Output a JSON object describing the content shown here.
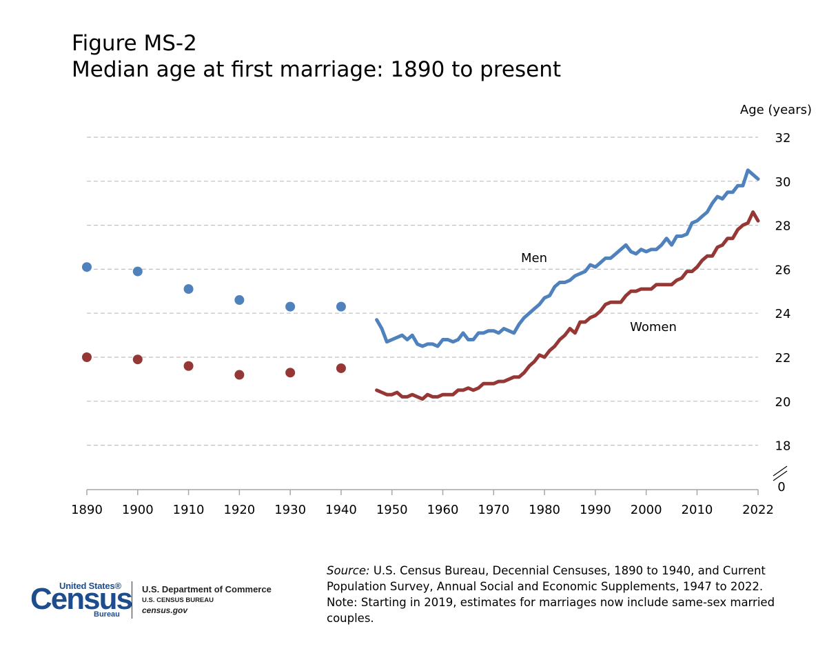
{
  "title": {
    "line1": "Figure MS-2",
    "line2": "Median age at first marriage: 1890 to present"
  },
  "chart_data": {
    "type": "line",
    "ylabel": "Age (years)",
    "ylim": [
      18,
      32
    ],
    "y_ticks": [
      32,
      30,
      28,
      26,
      24,
      22,
      20,
      18
    ],
    "y_zero_label": "0",
    "y_axis_break": true,
    "x_ticks": [
      1890,
      1900,
      1910,
      1920,
      1930,
      1940,
      1950,
      1960,
      1970,
      1980,
      1990,
      2000,
      2010,
      2022
    ],
    "grid": "horizontal dashed",
    "series": [
      {
        "name": "Men",
        "color": "#4f81bd",
        "census_points": [
          [
            1890,
            26.1
          ],
          [
            1900,
            25.9
          ],
          [
            1910,
            25.1
          ],
          [
            1920,
            24.6
          ],
          [
            1930,
            24.3
          ],
          [
            1940,
            24.3
          ]
        ],
        "line": [
          [
            1947,
            23.7
          ],
          [
            1948,
            23.3
          ],
          [
            1949,
            22.7
          ],
          [
            1950,
            22.8
          ],
          [
            1951,
            22.9
          ],
          [
            1952,
            23.0
          ],
          [
            1953,
            22.8
          ],
          [
            1954,
            23.0
          ],
          [
            1955,
            22.6
          ],
          [
            1956,
            22.5
          ],
          [
            1957,
            22.6
          ],
          [
            1958,
            22.6
          ],
          [
            1959,
            22.5
          ],
          [
            1960,
            22.8
          ],
          [
            1961,
            22.8
          ],
          [
            1962,
            22.7
          ],
          [
            1963,
            22.8
          ],
          [
            1964,
            23.1
          ],
          [
            1965,
            22.8
          ],
          [
            1966,
            22.8
          ],
          [
            1967,
            23.1
          ],
          [
            1968,
            23.1
          ],
          [
            1969,
            23.2
          ],
          [
            1970,
            23.2
          ],
          [
            1971,
            23.1
          ],
          [
            1972,
            23.3
          ],
          [
            1973,
            23.2
          ],
          [
            1974,
            23.1
          ],
          [
            1975,
            23.5
          ],
          [
            1976,
            23.8
          ],
          [
            1977,
            24.0
          ],
          [
            1978,
            24.2
          ],
          [
            1979,
            24.4
          ],
          [
            1980,
            24.7
          ],
          [
            1981,
            24.8
          ],
          [
            1982,
            25.2
          ],
          [
            1983,
            25.4
          ],
          [
            1984,
            25.4
          ],
          [
            1985,
            25.5
          ],
          [
            1986,
            25.7
          ],
          [
            1987,
            25.8
          ],
          [
            1988,
            25.9
          ],
          [
            1989,
            26.2
          ],
          [
            1990,
            26.1
          ],
          [
            1991,
            26.3
          ],
          [
            1992,
            26.5
          ],
          [
            1993,
            26.5
          ],
          [
            1994,
            26.7
          ],
          [
            1995,
            26.9
          ],
          [
            1996,
            27.1
          ],
          [
            1997,
            26.8
          ],
          [
            1998,
            26.7
          ],
          [
            1999,
            26.9
          ],
          [
            2000,
            26.8
          ],
          [
            2001,
            26.9
          ],
          [
            2002,
            26.9
          ],
          [
            2003,
            27.1
          ],
          [
            2004,
            27.4
          ],
          [
            2005,
            27.1
          ],
          [
            2006,
            27.5
          ],
          [
            2007,
            27.5
          ],
          [
            2008,
            27.6
          ],
          [
            2009,
            28.1
          ],
          [
            2010,
            28.2
          ],
          [
            2011,
            28.4
          ],
          [
            2012,
            28.6
          ],
          [
            2013,
            29.0
          ],
          [
            2014,
            29.3
          ],
          [
            2015,
            29.2
          ],
          [
            2016,
            29.5
          ],
          [
            2017,
            29.5
          ],
          [
            2018,
            29.8
          ],
          [
            2019,
            29.8
          ],
          [
            2020,
            30.5
          ],
          [
            2021,
            30.3
          ],
          [
            2022,
            30.1
          ]
        ]
      },
      {
        "name": "Women",
        "color": "#953735",
        "census_points": [
          [
            1890,
            22.0
          ],
          [
            1900,
            21.9
          ],
          [
            1910,
            21.6
          ],
          [
            1920,
            21.2
          ],
          [
            1930,
            21.3
          ],
          [
            1940,
            21.5
          ]
        ],
        "line": [
          [
            1947,
            20.5
          ],
          [
            1948,
            20.4
          ],
          [
            1949,
            20.3
          ],
          [
            1950,
            20.3
          ],
          [
            1951,
            20.4
          ],
          [
            1952,
            20.2
          ],
          [
            1953,
            20.2
          ],
          [
            1954,
            20.3
          ],
          [
            1955,
            20.2
          ],
          [
            1956,
            20.1
          ],
          [
            1957,
            20.3
          ],
          [
            1958,
            20.2
          ],
          [
            1959,
            20.2
          ],
          [
            1960,
            20.3
          ],
          [
            1961,
            20.3
          ],
          [
            1962,
            20.3
          ],
          [
            1963,
            20.5
          ],
          [
            1964,
            20.5
          ],
          [
            1965,
            20.6
          ],
          [
            1966,
            20.5
          ],
          [
            1967,
            20.6
          ],
          [
            1968,
            20.8
          ],
          [
            1969,
            20.8
          ],
          [
            1970,
            20.8
          ],
          [
            1971,
            20.9
          ],
          [
            1972,
            20.9
          ],
          [
            1973,
            21.0
          ],
          [
            1974,
            21.1
          ],
          [
            1975,
            21.1
          ],
          [
            1976,
            21.3
          ],
          [
            1977,
            21.6
          ],
          [
            1978,
            21.8
          ],
          [
            1979,
            22.1
          ],
          [
            1980,
            22.0
          ],
          [
            1981,
            22.3
          ],
          [
            1982,
            22.5
          ],
          [
            1983,
            22.8
          ],
          [
            1984,
            23.0
          ],
          [
            1985,
            23.3
          ],
          [
            1986,
            23.1
          ],
          [
            1987,
            23.6
          ],
          [
            1988,
            23.6
          ],
          [
            1989,
            23.8
          ],
          [
            1990,
            23.9
          ],
          [
            1991,
            24.1
          ],
          [
            1992,
            24.4
          ],
          [
            1993,
            24.5
          ],
          [
            1994,
            24.5
          ],
          [
            1995,
            24.5
          ],
          [
            1996,
            24.8
          ],
          [
            1997,
            25.0
          ],
          [
            1998,
            25.0
          ],
          [
            1999,
            25.1
          ],
          [
            2000,
            25.1
          ],
          [
            2001,
            25.1
          ],
          [
            2002,
            25.3
          ],
          [
            2003,
            25.3
          ],
          [
            2004,
            25.3
          ],
          [
            2005,
            25.3
          ],
          [
            2006,
            25.5
          ],
          [
            2007,
            25.6
          ],
          [
            2008,
            25.9
          ],
          [
            2009,
            25.9
          ],
          [
            2010,
            26.1
          ],
          [
            2011,
            26.4
          ],
          [
            2012,
            26.6
          ],
          [
            2013,
            26.6
          ],
          [
            2014,
            27.0
          ],
          [
            2015,
            27.1
          ],
          [
            2016,
            27.4
          ],
          [
            2017,
            27.4
          ],
          [
            2018,
            27.8
          ],
          [
            2019,
            28.0
          ],
          [
            2020,
            28.1
          ],
          [
            2021,
            28.6
          ],
          [
            2022,
            28.2
          ]
        ]
      }
    ]
  },
  "footer": {
    "source_label": "Source:",
    "source_text": " U.S. Census Bureau, Decennial Censuses, 1890 to 1940, and Current Population Survey, Annual Social and Economic Supplements, 1947 to 2022.",
    "note": "Note: Starting in 2019, estimates for marriages now include same-sex married couples."
  },
  "logo": {
    "united_states": "United States®",
    "census": "Census",
    "bureau": "Bureau",
    "dept_line1": "U.S. Department of Commerce",
    "dept_line2": "U.S. CENSUS BUREAU",
    "dept_line3": "census.gov"
  }
}
